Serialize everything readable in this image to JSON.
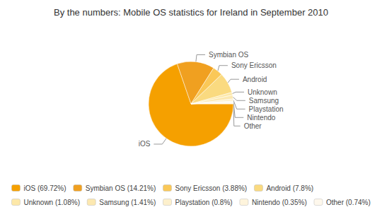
{
  "chart_data": {
    "type": "pie",
    "title": "By the numbers: Mobile OS statistics for Ireland in September 2010",
    "categories": [
      "iOS",
      "Symbian OS",
      "Sony Ericsson",
      "Android",
      "Unknown",
      "Samsung",
      "Playstation",
      "Nintendo",
      "Other"
    ],
    "values": [
      69.72,
      14.21,
      3.88,
      7.8,
      1.08,
      1.41,
      0.8,
      0.35,
      0.74
    ],
    "colors": [
      "#F5A000",
      "#F0A020",
      "#FAC858",
      "#FADA80",
      "#FDE8A8",
      "#FCE8B0",
      "#FDF0CC",
      "#FEF4DC",
      "#FEF8EC"
    ],
    "legend_labels": [
      "iOS (69.72%)",
      "Symbian OS (14.21%)",
      "Sony Ericsson (3.88%)",
      "Android (7.8%)",
      "Unknown (1.08%)",
      "Samsung (1.41%)",
      "Playstation (0.8%)",
      "Nintendo (0.35%)",
      "Other (0.74%)"
    ],
    "legend": "bottom"
  }
}
